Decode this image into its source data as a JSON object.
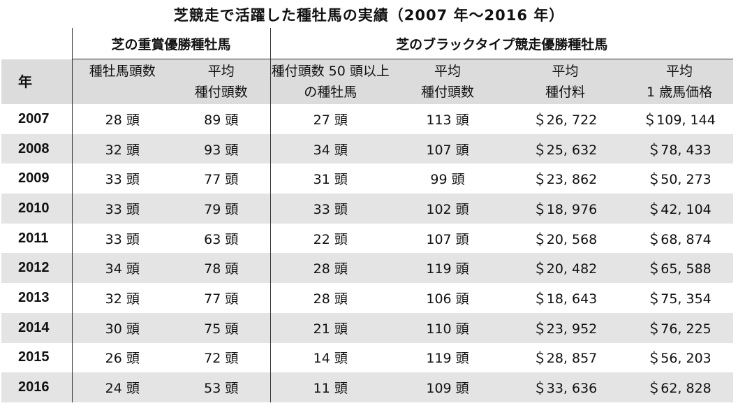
{
  "title": "芝競走で活躍した種牡馬の実績（2007 年～2016 年）",
  "groups": {
    "left": "芝の重賞優勝種牡馬",
    "right": "芝のブラックタイプ競走優勝種牡馬"
  },
  "headers": {
    "year": "年",
    "c1": "種牡馬頭数",
    "c2_line1": "平均",
    "c2_line2": "種付頭数",
    "c3_line1": "種付頭数 50 頭以上",
    "c3_line2": "の種牡馬",
    "c4_line1": "平均",
    "c4_line2": "種付頭数",
    "c5_line1": "平均",
    "c5_line2": "種付料",
    "c6_line1": "平均",
    "c6_line2": "1 歳馬価格"
  },
  "rows": [
    [
      "2007",
      "28 頭",
      "89 頭",
      "27 頭",
      "113 頭",
      "＄26, 722",
      "＄109, 144"
    ],
    [
      "2008",
      "32 頭",
      "93 頭",
      "34 頭",
      "107 頭",
      "＄25, 632",
      "＄78, 433"
    ],
    [
      "2009",
      "33 頭",
      "77 頭",
      "31 頭",
      "99 頭",
      "＄23, 862",
      "＄50, 273"
    ],
    [
      "2010",
      "33 頭",
      "79 頭",
      "33 頭",
      "102 頭",
      "＄18, 976",
      "＄42, 104"
    ],
    [
      "2011",
      "33 頭",
      "63 頭",
      "22 頭",
      "107 頭",
      "＄20, 568",
      "＄68, 874"
    ],
    [
      "2012",
      "34 頭",
      "78 頭",
      "28 頭",
      "119 頭",
      "＄20, 482",
      "＄65, 588"
    ],
    [
      "2013",
      "32 頭",
      "77 頭",
      "28 頭",
      "106 頭",
      "＄18, 643",
      "＄75, 354"
    ],
    [
      "2014",
      "30 頭",
      "75 頭",
      "21 頭",
      "110 頭",
      "＄23, 952",
      "＄76, 225"
    ],
    [
      "2015",
      "26 頭",
      "72 頭",
      "14 頭",
      "119 頭",
      "＄28, 857",
      "＄56, 203"
    ],
    [
      "2016",
      "24 頭",
      "53 頭",
      "11 頭",
      "109 頭",
      "＄33, 636",
      "＄62, 828"
    ]
  ]
}
